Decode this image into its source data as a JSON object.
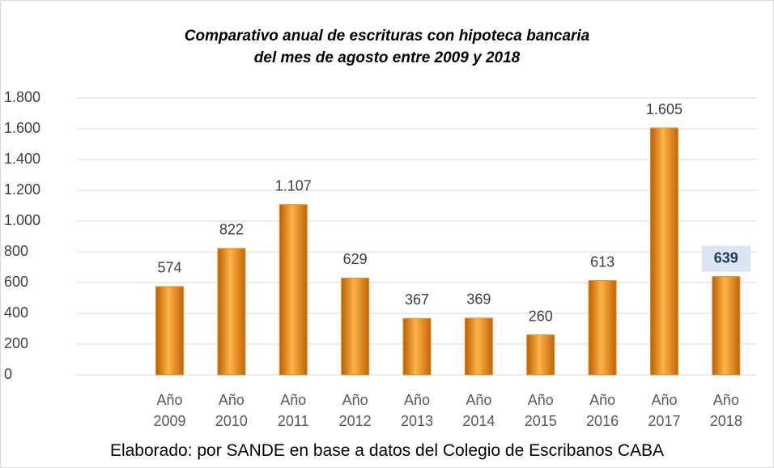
{
  "chart_data": {
    "type": "bar",
    "title": "Comparativo anual de escrituras con hipoteca bancaria",
    "subtitle": "del mes de agosto entre 2009 y 2018",
    "categories": [
      null,
      "Año 2009",
      "Año 2010",
      "Año 2011",
      "Año 2012",
      "Año 2013",
      "Año 2014",
      "Año 2015",
      "Año 2016",
      "Año 2017",
      "Año 2018"
    ],
    "values": [
      null,
      574,
      822,
      1107,
      629,
      367,
      369,
      260,
      613,
      1605,
      639
    ],
    "value_labels": [
      null,
      "574",
      "822",
      "1.107",
      "629",
      "367",
      "369",
      "260",
      "613",
      "1.605",
      "639"
    ],
    "color": "#f28c1e",
    "ylim": [
      0,
      1800
    ],
    "yticks": [
      0,
      200,
      400,
      600,
      800,
      {
        "value": 1000,
        "label": "1.000"
      },
      {
        "value": 1200,
        "label": "1.200"
      },
      {
        "value": 1400,
        "label": "1.400"
      },
      {
        "value": 1600,
        "label": "1.600"
      },
      {
        "value": 1800,
        "label": "1.800"
      }
    ],
    "grid": true,
    "source": "Elaborado: por SANDE en base a datos del Colegio de Escribanos CABA"
  }
}
